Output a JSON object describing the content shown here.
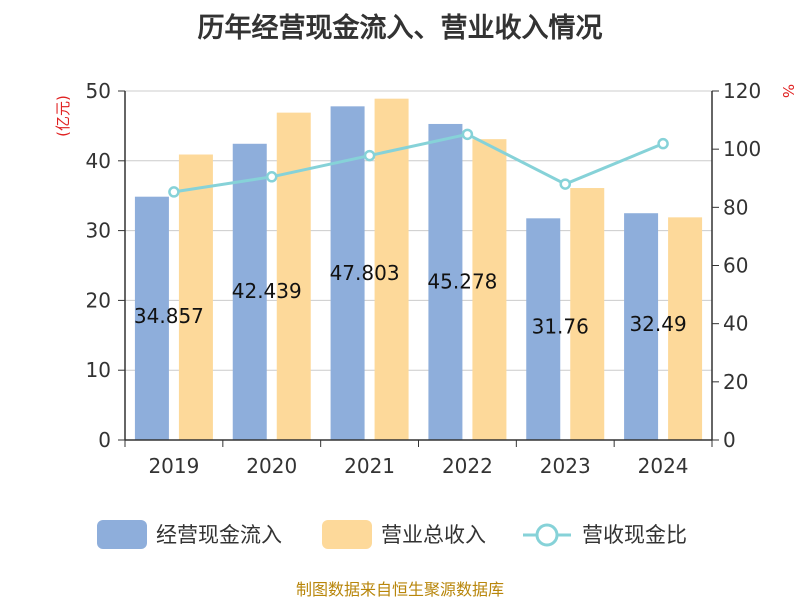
{
  "chart_data": {
    "type": "bar",
    "title": "历年经营现金流入、营业收入情况",
    "categories": [
      "2019",
      "2020",
      "2021",
      "2022",
      "2023",
      "2024"
    ],
    "series": [
      {
        "name": "经营现金流入",
        "type": "bar",
        "axis": "left",
        "color": "#8eaedb",
        "values": [
          34.857,
          42.439,
          47.803,
          45.278,
          31.76,
          32.49
        ],
        "data_labels": [
          "34.857",
          "42.439",
          "47.803",
          "45.278",
          "31.76",
          "32.49"
        ]
      },
      {
        "name": "营业总收入",
        "type": "bar",
        "axis": "left",
        "color": "#fdd99a",
        "values": [
          40.9,
          46.9,
          48.9,
          43.1,
          36.1,
          31.9
        ]
      },
      {
        "name": "营收现金比",
        "type": "line",
        "axis": "right",
        "color": "#86d2d8",
        "values": [
          85.3,
          90.5,
          97.8,
          105.1,
          88.0,
          101.9
        ]
      }
    ],
    "y_left": {
      "label": "(亿元)",
      "min": 0,
      "max": 50,
      "ticks": [
        0,
        10,
        20,
        30,
        40,
        50
      ]
    },
    "y_right": {
      "label": "%",
      "min": 0,
      "max": 120,
      "ticks": [
        0,
        20,
        40,
        60,
        80,
        100,
        120
      ]
    },
    "grid": true,
    "legend": "bottom",
    "source": "制图数据来自恒生聚源数据库"
  }
}
